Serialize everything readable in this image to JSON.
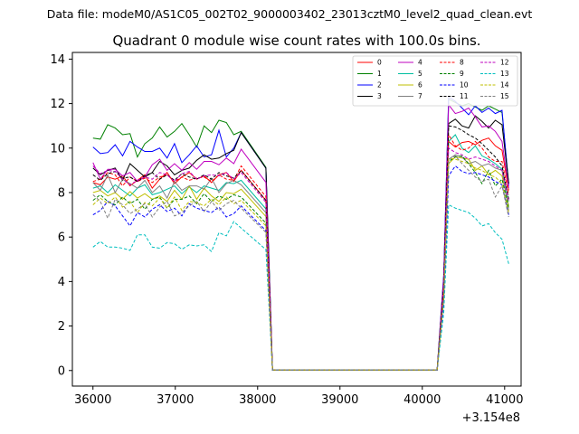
{
  "chart_data": {
    "type": "line",
    "suptitle": "Data file: modeM0/AS1C05_002T02_9000003402_23013cztM0_level2_quad_clean.evt",
    "title": "Quadrant 0 module wise count rates with 100.0s bins.",
    "xlabel": "",
    "ylabel": "",
    "x_offset_label": "+3.154e8",
    "xlim": [
      35750,
      41200
    ],
    "ylim": [
      -0.7,
      14.3
    ],
    "xticks": [
      36000,
      37000,
      38000,
      39000,
      40000,
      41000
    ],
    "xtick_labels": [
      "36000",
      "37000",
      "38000",
      "39000",
      "40000",
      "41000"
    ],
    "yticks": [
      0,
      2,
      4,
      6,
      8,
      10,
      12,
      14
    ],
    "ytick_labels": [
      "0",
      "2",
      "4",
      "6",
      "8",
      "10",
      "12",
      "14"
    ],
    "grid": false,
    "legend_position": "top-right",
    "legend_columns": 4,
    "series": [
      {
        "name": "0",
        "color": "#ff0000",
        "dash": "solid",
        "gap": [
          8.45,
          8.35,
          8.7,
          8.6,
          8.75,
          8.3,
          8.55,
          8.8,
          8.2,
          8.6,
          8.9,
          8.4,
          8.7,
          8.9,
          8.6,
          8.75,
          8.45,
          8.8,
          8.9,
          8.5,
          9.0
        ],
        "post": [
          10.3,
          10.05,
          10.25,
          10.3,
          10.15,
          10.35,
          10.45,
          10.1,
          9.9,
          8.1
        ]
      },
      {
        "name": "1",
        "color": "#008000",
        "dash": "solid",
        "gap": [
          10.45,
          10.4,
          11.05,
          10.9,
          10.6,
          10.65,
          9.6,
          10.2,
          10.45,
          10.95,
          10.5,
          10.75,
          11.1,
          10.6,
          10.05,
          11.0,
          10.7,
          11.25,
          11.15,
          10.6,
          10.75
        ],
        "post": [
          12.2,
          12.05,
          11.9,
          12.0,
          11.85,
          11.7,
          11.9,
          11.75,
          11.6,
          8.4
        ]
      },
      {
        "name": "2",
        "color": "#0000ff",
        "dash": "solid",
        "gap": [
          10.05,
          9.75,
          9.8,
          10.15,
          9.65,
          10.3,
          10.05,
          9.85,
          9.85,
          10.0,
          9.55,
          10.2,
          9.35,
          9.7,
          10.1,
          9.6,
          9.7,
          10.8,
          9.6,
          10.0,
          10.7
        ],
        "post": [
          12.3,
          12.1,
          11.8,
          11.5,
          11.9,
          11.6,
          11.8,
          11.55,
          11.7,
          8.3
        ]
      },
      {
        "name": "3",
        "color": "#000000",
        "dash": "solid",
        "gap": [
          9.1,
          8.8,
          9.0,
          9.1,
          8.55,
          9.3,
          9.0,
          8.7,
          8.9,
          9.4,
          9.2,
          8.8,
          9.0,
          9.1,
          9.45,
          9.7,
          9.5,
          9.55,
          9.75,
          9.9,
          10.7
        ],
        "post": [
          11.1,
          11.3,
          11.0,
          10.9,
          11.45,
          11.2,
          10.9,
          11.25,
          11.05,
          8.4
        ]
      },
      {
        "name": "4",
        "color": "#bf00bf",
        "dash": "solid",
        "gap": [
          9.35,
          8.6,
          9.05,
          9.05,
          8.75,
          8.9,
          8.5,
          8.7,
          9.25,
          9.5,
          9.0,
          9.3,
          9.0,
          9.35,
          9.05,
          9.4,
          9.4,
          9.25,
          9.55,
          9.3,
          9.95
        ],
        "post": [
          11.95,
          11.55,
          11.65,
          11.8,
          11.4,
          10.95,
          11.0,
          10.75,
          10.3,
          8.2
        ]
      },
      {
        "name": "5",
        "color": "#00bfa0",
        "dash": "solid",
        "gap": [
          8.2,
          8.3,
          8.0,
          8.35,
          8.1,
          7.85,
          8.2,
          8.35,
          7.9,
          8.0,
          8.15,
          8.3,
          7.95,
          8.25,
          8.0,
          8.3,
          8.2,
          8.1,
          8.45,
          8.4,
          8.55
        ],
        "post": [
          10.3,
          10.6,
          10.0,
          9.8,
          10.1,
          9.65,
          9.5,
          9.3,
          9.05,
          7.6
        ]
      },
      {
        "name": "6",
        "color": "#bfbf00",
        "dash": "solid",
        "gap": [
          8.0,
          8.1,
          7.85,
          8.0,
          7.7,
          8.05,
          7.75,
          7.95,
          7.7,
          7.85,
          7.6,
          8.1,
          7.7,
          8.3,
          7.7,
          8.2,
          7.85,
          7.6,
          8.0,
          7.95,
          8.15
        ],
        "post": [
          9.3,
          9.6,
          9.55,
          9.5,
          9.0,
          9.2,
          8.8,
          9.0,
          8.75,
          7.4
        ]
      },
      {
        "name": "7",
        "color": "#808080",
        "dash": "solid",
        "gap": [
          8.45,
          8.1,
          8.8,
          8.0,
          8.6,
          8.4,
          8.2,
          8.55,
          8.0,
          8.3,
          7.75,
          8.5,
          8.1,
          8.3,
          8.3,
          8.15,
          8.65,
          8.0,
          8.4,
          8.55,
          8.35
        ],
        "post": [
          9.5,
          9.7,
          9.6,
          9.3,
          9.4,
          9.2,
          9.3,
          9.1,
          9.0,
          7.2
        ]
      },
      {
        "name": "8",
        "color": "#ff0000",
        "dash": "dashed",
        "gap": [
          8.5,
          8.6,
          8.9,
          8.8,
          8.3,
          8.7,
          8.5,
          8.65,
          8.45,
          8.7,
          8.8,
          8.5,
          8.7,
          8.55,
          8.65,
          8.7,
          8.5,
          8.8,
          8.6,
          8.55,
          9.2
        ],
        "post": [
          10.6,
          10.1,
          9.9,
          10.0,
          10.3,
          10.0,
          9.6,
          9.4,
          9.4,
          7.9
        ]
      },
      {
        "name": "9",
        "color": "#008000",
        "dash": "dashed",
        "gap": [
          7.65,
          7.9,
          7.6,
          7.45,
          7.8,
          7.5,
          7.7,
          7.25,
          7.7,
          7.8,
          7.3,
          7.7,
          7.7,
          7.85,
          7.5,
          7.95,
          7.6,
          7.85,
          7.7,
          7.9,
          7.8
        ],
        "post": [
          9.4,
          9.6,
          9.65,
          9.3,
          8.9,
          8.4,
          9.0,
          8.3,
          8.6,
          7.3
        ]
      },
      {
        "name": "10",
        "color": "#0000ff",
        "dash": "dashed",
        "gap": [
          7.0,
          7.2,
          7.6,
          7.4,
          6.95,
          6.5,
          7.1,
          6.9,
          7.25,
          7.45,
          7.15,
          7.3,
          6.95,
          7.5,
          7.3,
          7.2,
          7.1,
          7.35,
          6.9,
          7.05,
          7.4
        ],
        "post": [
          8.75,
          9.2,
          8.95,
          8.85,
          8.9,
          8.8,
          8.7,
          8.5,
          8.35,
          7.0
        ]
      },
      {
        "name": "11",
        "color": "#000000",
        "dash": "dashed",
        "gap": [
          8.8,
          8.55,
          8.85,
          8.95,
          8.65,
          8.7,
          8.5,
          8.75,
          8.9,
          8.6,
          8.8,
          8.55,
          8.85,
          8.7,
          8.6,
          8.8,
          8.6,
          8.9,
          8.75,
          8.65,
          9.0
        ],
        "post": [
          11.0,
          10.95,
          10.8,
          10.6,
          10.45,
          10.2,
          9.9,
          9.6,
          9.2,
          7.7
        ]
      },
      {
        "name": "12",
        "color": "#bf00bf",
        "dash": "dashed",
        "gap": [
          9.2,
          8.85,
          9.0,
          8.95,
          8.6,
          8.35,
          8.55,
          8.7,
          8.6,
          8.9,
          8.8,
          8.5,
          8.85,
          8.95,
          8.6,
          8.75,
          8.8,
          8.75,
          8.9,
          8.6,
          8.9
        ],
        "post": [
          10.0,
          9.8,
          9.7,
          9.5,
          9.6,
          9.5,
          9.4,
          9.2,
          9.0,
          7.6
        ]
      },
      {
        "name": "13",
        "color": "#00bfbf",
        "dash": "dashed",
        "gap": [
          5.55,
          5.8,
          5.55,
          5.55,
          5.5,
          5.4,
          6.1,
          6.1,
          5.55,
          5.5,
          5.75,
          5.7,
          5.45,
          5.65,
          5.6,
          5.65,
          5.35,
          6.2,
          6.05,
          6.7,
          6.4
        ],
        "post": [
          7.45,
          7.3,
          7.2,
          7.1,
          6.85,
          6.5,
          6.6,
          6.2,
          5.9,
          4.8
        ]
      },
      {
        "name": "14",
        "color": "#bfbf00",
        "dash": "dashed",
        "gap": [
          7.45,
          7.75,
          7.5,
          7.8,
          7.35,
          7.6,
          7.1,
          7.55,
          7.4,
          7.75,
          7.3,
          7.8,
          7.2,
          7.6,
          7.55,
          7.4,
          7.7,
          7.45,
          7.8,
          7.5,
          7.65
        ],
        "post": [
          9.55,
          9.5,
          9.4,
          9.3,
          9.1,
          9.0,
          8.8,
          8.7,
          8.4,
          7.1
        ]
      },
      {
        "name": "15",
        "color": "#808080",
        "dash": "dashed",
        "gap": [
          7.9,
          7.6,
          6.85,
          7.7,
          7.45,
          7.05,
          7.25,
          7.5,
          6.9,
          7.35,
          7.6,
          6.95,
          7.1,
          7.4,
          7.6,
          7.15,
          7.6,
          7.2,
          7.5,
          7.65,
          7.3
        ],
        "post": [
          9.5,
          9.65,
          9.3,
          9.0,
          8.7,
          8.5,
          8.6,
          7.8,
          8.3,
          6.9
        ]
      }
    ],
    "x_gap_start": 36000,
    "x_step": 90,
    "x_post_start": 40260,
    "x_post_step": 81
  }
}
